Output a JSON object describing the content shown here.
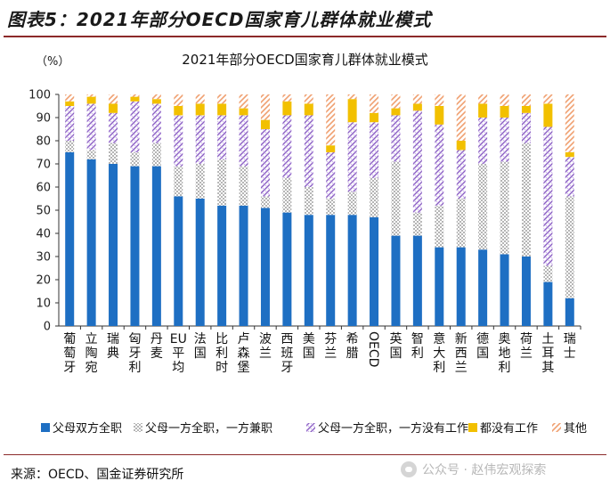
{
  "figure_title": "图表5：2021年部分OECD国家育儿群体就业模式",
  "source": "来源：OECD、国金证券研究所",
  "watermark": "公众号 · 赵伟宏观探索",
  "colors": {
    "blue": "#1e6fc3",
    "gray": "#bdbdbd",
    "purple": "#8a5ec3",
    "yellow": "#f2c000",
    "orange": "#f0a070"
  },
  "chart_data": {
    "type": "bar",
    "stacked": true,
    "title": "2021年部分OECD国家育儿群体就业模式",
    "ylabel": "（%）",
    "ylim": [
      0,
      100
    ],
    "yticks": [
      0,
      10,
      20,
      30,
      40,
      50,
      60,
      70,
      80,
      90,
      100
    ],
    "grid": false,
    "legend_position": "bottom",
    "categories": [
      "葡萄牙",
      "立陶宛",
      "瑞典",
      "匈牙利",
      "丹麦",
      "EU平均",
      "法国",
      "比利时",
      "卢森堡",
      "波兰",
      "西班牙",
      "美国",
      "芬兰",
      "希腊",
      "OECD",
      "英国",
      "智利",
      "意大利",
      "新西兰",
      "德国",
      "奥地利",
      "荷兰",
      "土耳其",
      "瑞士"
    ],
    "series": [
      {
        "name": "父母双方全职",
        "color": "blue",
        "values": [
          75,
          72,
          70,
          69,
          69,
          56,
          55,
          52,
          52,
          51,
          49,
          48,
          48,
          48,
          47,
          39,
          39,
          34,
          34,
          33,
          31,
          30,
          19,
          12
        ]
      },
      {
        "name": "父母一方全职，一方兼职",
        "color": "gray",
        "values": [
          5,
          4,
          9,
          6,
          10,
          13,
          15,
          20,
          17,
          5,
          15,
          12,
          7,
          10,
          17,
          32,
          10,
          18,
          21,
          37,
          40,
          49,
          7,
          44
        ]
      },
      {
        "name": "父母一方全职，一方没有工作",
        "color": "purple",
        "values": [
          15,
          20,
          13,
          22,
          17,
          22,
          21,
          19,
          22,
          29,
          27,
          31,
          20,
          30,
          24,
          20,
          44,
          35,
          21,
          20,
          19,
          13,
          60,
          17
        ]
      },
      {
        "name": "都没有工作",
        "color": "yellow",
        "values": [
          2,
          3,
          4,
          2,
          2,
          4,
          5,
          5,
          3,
          4,
          6,
          5,
          3,
          10,
          4,
          3,
          3,
          8,
          4,
          6,
          5,
          3,
          10,
          2
        ]
      },
      {
        "name": "其他",
        "color": "orange",
        "values": [
          3,
          1,
          4,
          1,
          2,
          5,
          4,
          4,
          6,
          11,
          3,
          4,
          22,
          2,
          8,
          6,
          4,
          5,
          20,
          4,
          5,
          5,
          4,
          25
        ]
      }
    ]
  }
}
